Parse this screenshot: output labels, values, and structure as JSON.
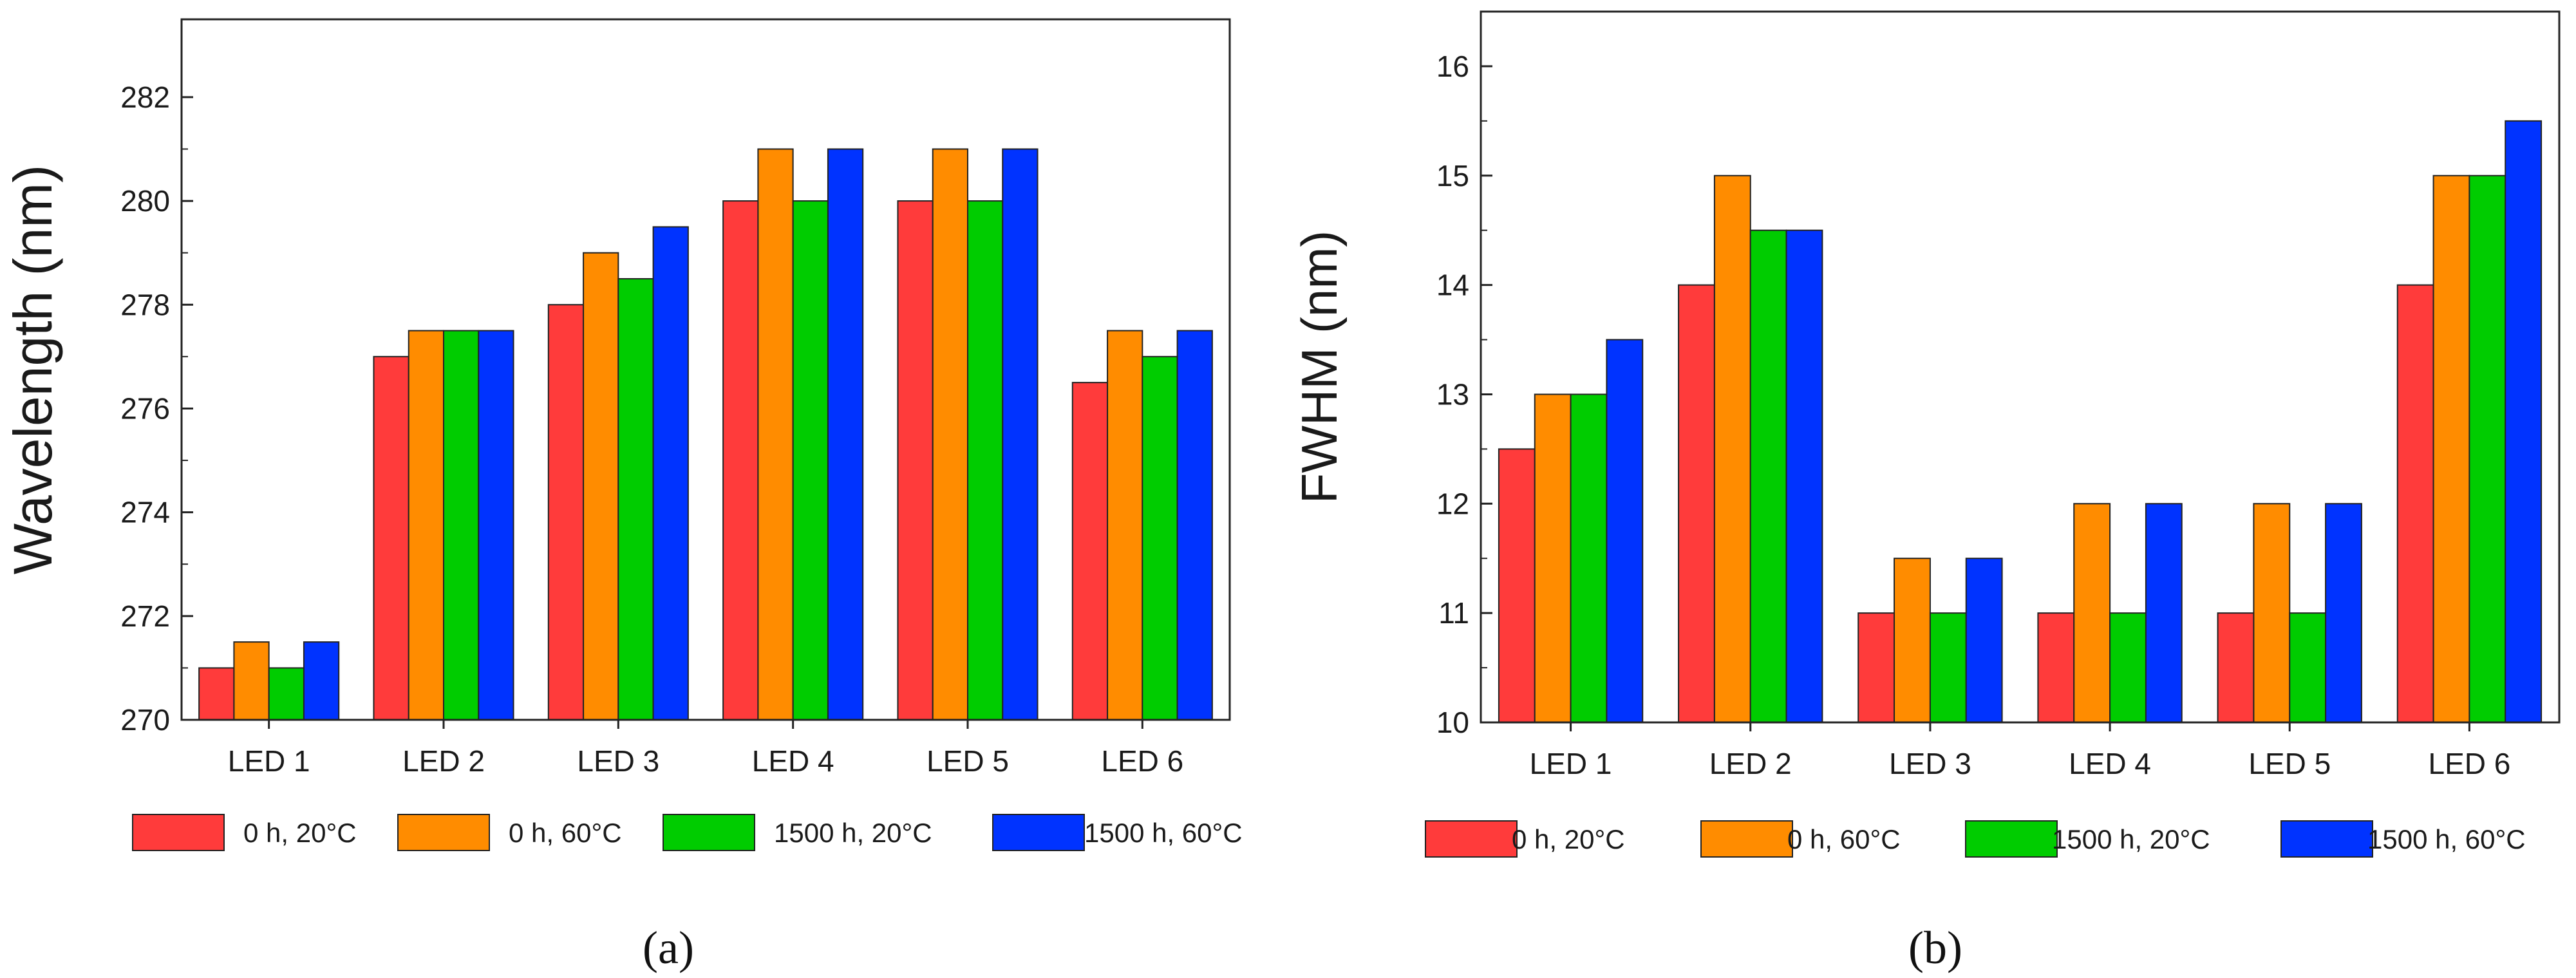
{
  "chart_data": [
    {
      "type": "bar",
      "panel_label": "(a)",
      "ylabel": "Wavelength (nm)",
      "xlabel": "",
      "categories": [
        "LED 1",
        "LED 2",
        "LED 3",
        "LED 4",
        "LED 5",
        "LED 6"
      ],
      "ylim": [
        270,
        283.5
      ],
      "yticks": [
        270,
        272,
        274,
        276,
        278,
        280,
        282
      ],
      "legend_position": "bottom",
      "series": [
        {
          "name": "0 h, 20°C",
          "color": "#ff3b3b",
          "values": [
            271,
            277,
            278,
            280,
            280,
            276.5
          ]
        },
        {
          "name": "0 h, 60°C",
          "color": "#ff8c00",
          "values": [
            271.5,
            277.5,
            279,
            281,
            281,
            277.5
          ]
        },
        {
          "name": "1500 h,  20°C",
          "color": "#00cc00",
          "values": [
            271,
            277.5,
            278.5,
            280,
            280,
            277
          ]
        },
        {
          "name": "1500 h,  60°C",
          "color": "#0033ff",
          "values": [
            271.5,
            277.5,
            279.5,
            281,
            281,
            277.5
          ]
        }
      ]
    },
    {
      "type": "bar",
      "panel_label": "(b)",
      "ylabel": "FWHM (nm)",
      "xlabel": "",
      "categories": [
        "LED 1",
        "LED 2",
        "LED 3",
        "LED 4",
        "LED 5",
        "LED 6"
      ],
      "ylim": [
        10,
        16.5
      ],
      "yticks": [
        10,
        11,
        12,
        13,
        14,
        15,
        16
      ],
      "legend_position": "bottom",
      "series": [
        {
          "name": "0 h, 20°C",
          "color": "#ff3b3b",
          "values": [
            12.5,
            14,
            11,
            11,
            11,
            14
          ]
        },
        {
          "name": "0 h, 60°C",
          "color": "#ff8c00",
          "values": [
            13,
            15,
            11.5,
            12,
            12,
            15
          ]
        },
        {
          "name": "1500 h, 20°C",
          "color": "#00cc00",
          "values": [
            13,
            14.5,
            11,
            11,
            11,
            15
          ]
        },
        {
          "name": "1500 h, 60°C",
          "color": "#0033ff",
          "values": [
            13.5,
            14.5,
            11.5,
            12,
            12,
            15.5
          ]
        }
      ]
    }
  ]
}
